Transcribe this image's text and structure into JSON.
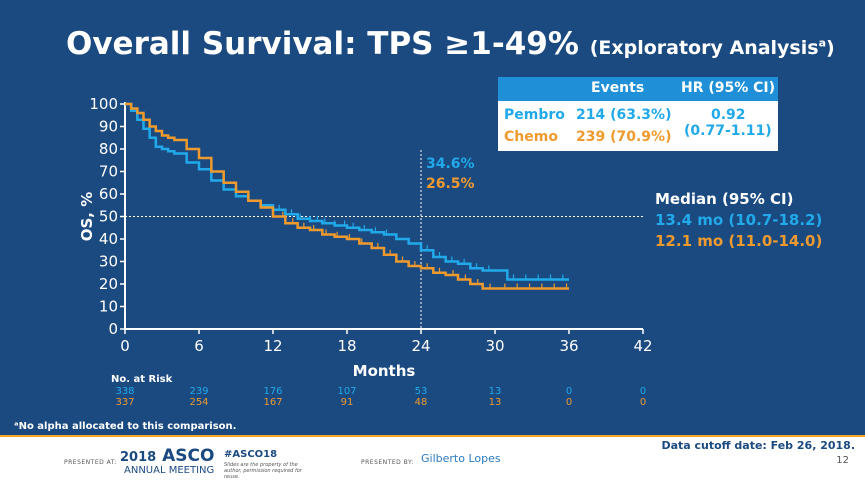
{
  "slide": {
    "title_main": "Overall Survival: TPS ≥1-49%",
    "title_sub": "(Exploratory Analysis",
    "title_sup": "a",
    "title_close": ")",
    "footnote": "ᵃNo alpha allocated to this comparison."
  },
  "hr_table": {
    "header_events": "Events",
    "header_hr": "HR (95% CI)",
    "pembro_label": "Pembro",
    "pembro_events": "214 (63.3%)",
    "chemo_label": "Chemo",
    "chemo_events": "239 (70.9%)",
    "hr_value": "0.92",
    "hr_ci": "(0.77-1.11)"
  },
  "median": {
    "header": "Median (95% CI)",
    "pembro": "13.4 mo (10.7-18.2)",
    "chemo": "12.1 mo (11.0-14.0)"
  },
  "chart_data": {
    "type": "line",
    "ylabel": "OS, %",
    "xlabel": "Months",
    "xlim": [
      0,
      42
    ],
    "ylim": [
      0,
      100
    ],
    "xticks": [
      0,
      6,
      12,
      18,
      24,
      30,
      36,
      42
    ],
    "yticks": [
      0,
      10,
      20,
      30,
      40,
      50,
      60,
      70,
      80,
      90,
      100
    ],
    "reference_line_y": 50,
    "reference_line_x": 24,
    "annotations": [
      "34.6%",
      "26.5%"
    ],
    "series": [
      {
        "name": "Pembro",
        "color": "#21a9ea",
        "x": [
          0,
          0.5,
          1,
          1.5,
          2,
          2.5,
          3,
          3.5,
          4,
          5,
          6,
          7,
          8,
          9,
          10,
          11,
          12,
          13,
          14,
          15,
          16,
          17,
          18,
          19,
          20,
          21,
          22,
          23,
          24,
          25,
          26,
          27,
          28,
          29,
          30,
          31,
          32,
          33,
          34,
          35,
          36
        ],
        "y": [
          100,
          97,
          93,
          89,
          85,
          81,
          80,
          79,
          78,
          74,
          71,
          66,
          62,
          59,
          57,
          55,
          53,
          51,
          49,
          48,
          47,
          46,
          45,
          44,
          43,
          42,
          40,
          38,
          35,
          32,
          30,
          29,
          27,
          26,
          26,
          22,
          22,
          22,
          22,
          22,
          22
        ],
        "censor_x": [
          12.5,
          13,
          13.5,
          14.2,
          15,
          15.6,
          16.2,
          17,
          17.8,
          18.5,
          19.4,
          20.3,
          21.2,
          22,
          23,
          24.5,
          25.5,
          26.5,
          27.5,
          28.5,
          29.5,
          31.5,
          32.5,
          33.5,
          34.5,
          35.5
        ]
      },
      {
        "name": "Chemo",
        "color": "#ef9a2e",
        "x": [
          0,
          0.5,
          1,
          1.5,
          2,
          2.5,
          3,
          3.5,
          4,
          5,
          6,
          7,
          8,
          9,
          10,
          11,
          12,
          13,
          14,
          15,
          16,
          17,
          18,
          19,
          20,
          21,
          22,
          23,
          24,
          25,
          26,
          27,
          28,
          29,
          30,
          31,
          32,
          33,
          34,
          35,
          36
        ],
        "y": [
          100,
          98,
          96,
          93,
          90,
          88,
          86,
          85,
          84,
          80,
          76,
          70,
          65,
          61,
          57,
          54,
          50,
          47,
          45,
          44,
          42,
          41,
          40,
          38,
          36,
          33,
          30,
          28,
          27,
          25,
          24,
          22,
          20,
          18,
          18,
          18,
          18,
          18,
          18,
          18,
          18
        ],
        "censor_x": [
          12.8,
          13.6,
          14.5,
          15.3,
          16.3,
          17.2,
          18.2,
          19.2,
          20.5,
          21.5,
          22.5,
          23.5,
          24.5,
          25.5,
          26.6,
          27.6,
          28.6,
          29.6,
          30.8,
          31.8,
          32.8,
          33.8,
          34.8,
          35.8
        ]
      }
    ],
    "risk_table": {
      "header": "No. at Risk",
      "pembro": [
        "338",
        "239",
        "176",
        "107",
        "53",
        "13",
        "0",
        "0"
      ],
      "chemo": [
        "337",
        "254",
        "167",
        "91",
        "48",
        "13",
        "0",
        "0"
      ]
    }
  },
  "footer": {
    "presented_at": "PRESENTED AT:",
    "meeting_year": "2018",
    "meeting_name": "ASCO",
    "meeting_sub": "ANNUAL MEETING",
    "hashtag": "#ASCO18",
    "slides_note": "Slides are the property of the author, permission required for reuse.",
    "presented_by": "PRESENTED BY:",
    "presenter": "Gilberto Lopes",
    "cutoff": "Data cutoff date: Feb 26, 2018.",
    "page": "12"
  }
}
